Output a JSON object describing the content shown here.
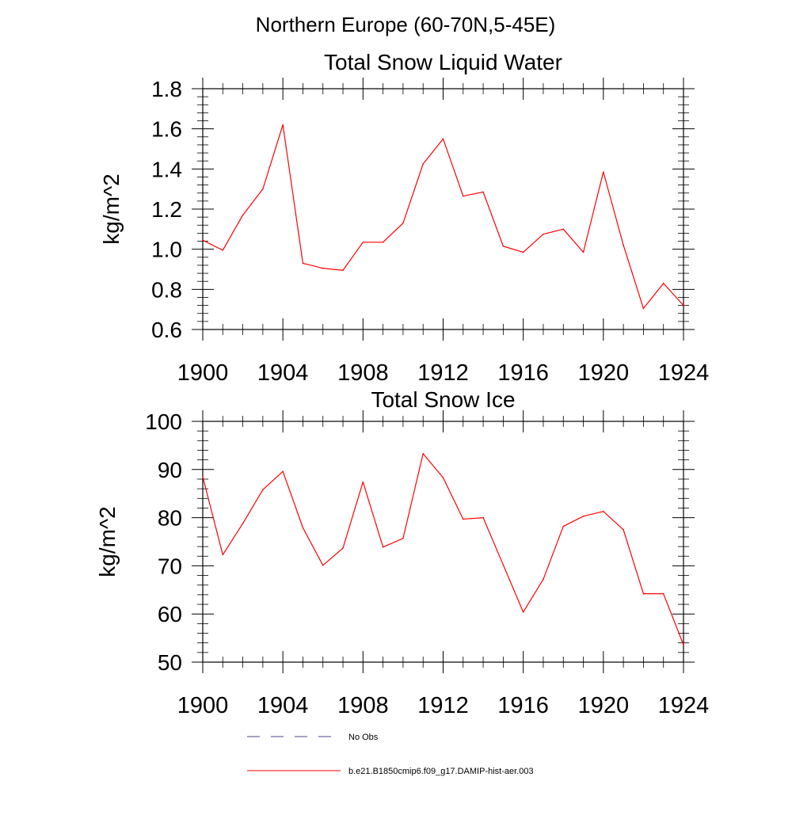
{
  "figure": {
    "title": "Northern Europe (60-70N,5-45E)"
  },
  "legend": {
    "placement": "bottom-left",
    "items": [
      {
        "label": "No Obs",
        "color": "#4a4a8c",
        "style": "dashed"
      },
      {
        "label": "b.e21.B1850cmip6.f09_g17.DAMIP-hist-aer.003",
        "color": "#ff0000",
        "style": "solid"
      }
    ]
  },
  "chart_data": [
    {
      "type": "line",
      "title": "Total Snow Liquid Water",
      "ylabel": "kg/m^2",
      "xlabel": "",
      "xlim": [
        1900,
        1924
      ],
      "ylim": [
        0.6,
        1.8
      ],
      "xticks": [
        1900,
        1904,
        1908,
        1912,
        1916,
        1920,
        1924
      ],
      "xtick_labels": [
        "1900",
        "1904",
        "1908",
        "1912",
        "1916",
        "1920",
        "1924"
      ],
      "yticks": [
        0.6,
        0.8,
        1.0,
        1.2,
        1.4,
        1.6,
        1.8
      ],
      "ytick_labels": [
        "0.6",
        "0.8",
        "1.0",
        "1.2",
        "1.4",
        "1.6",
        "1.8"
      ],
      "grid": false,
      "series": [
        {
          "name": "b.e21.B1850cmip6.f09_g17.DAMIP-hist-aer.003",
          "color": "#ff0000",
          "x": [
            1900,
            1901,
            1902,
            1903,
            1904,
            1905,
            1906,
            1907,
            1908,
            1909,
            1910,
            1911,
            1912,
            1913,
            1914,
            1915,
            1916,
            1917,
            1918,
            1919,
            1920,
            1921,
            1922,
            1923,
            1924
          ],
          "y": [
            1.045,
            0.995,
            1.17,
            1.3,
            1.62,
            0.93,
            0.905,
            0.895,
            1.035,
            1.035,
            1.13,
            1.425,
            1.55,
            1.265,
            1.285,
            1.015,
            0.985,
            1.075,
            1.1,
            0.985,
            1.385,
            1.02,
            0.705,
            0.83,
            0.72
          ]
        }
      ]
    },
    {
      "type": "line",
      "title": "Total Snow Ice",
      "ylabel": "kg/m^2",
      "xlabel": "",
      "xlim": [
        1900,
        1924
      ],
      "ylim": [
        50,
        100
      ],
      "xticks": [
        1900,
        1904,
        1908,
        1912,
        1916,
        1920,
        1924
      ],
      "xtick_labels": [
        "1900",
        "1904",
        "1908",
        "1912",
        "1916",
        "1920",
        "1924"
      ],
      "yticks": [
        50,
        60,
        70,
        80,
        90,
        100
      ],
      "ytick_labels": [
        "50",
        "60",
        "70",
        "80",
        "90",
        "100"
      ],
      "grid": false,
      "series": [
        {
          "name": "b.e21.B1850cmip6.f09_g17.DAMIP-hist-aer.003",
          "color": "#ff0000",
          "x": [
            1900,
            1901,
            1902,
            1903,
            1904,
            1905,
            1906,
            1907,
            1908,
            1909,
            1910,
            1911,
            1912,
            1913,
            1914,
            1915,
            1916,
            1917,
            1918,
            1919,
            1920,
            1921,
            1922,
            1923,
            1924
          ],
          "y": [
            88.5,
            72.3,
            78.8,
            85.8,
            89.6,
            77.9,
            70.1,
            73.7,
            87.4,
            73.9,
            75.7,
            93.3,
            88.3,
            79.7,
            80.0,
            70.2,
            60.4,
            67.2,
            78.2,
            80.3,
            81.3,
            77.5,
            64.2,
            64.2,
            53.6
          ]
        }
      ]
    }
  ]
}
